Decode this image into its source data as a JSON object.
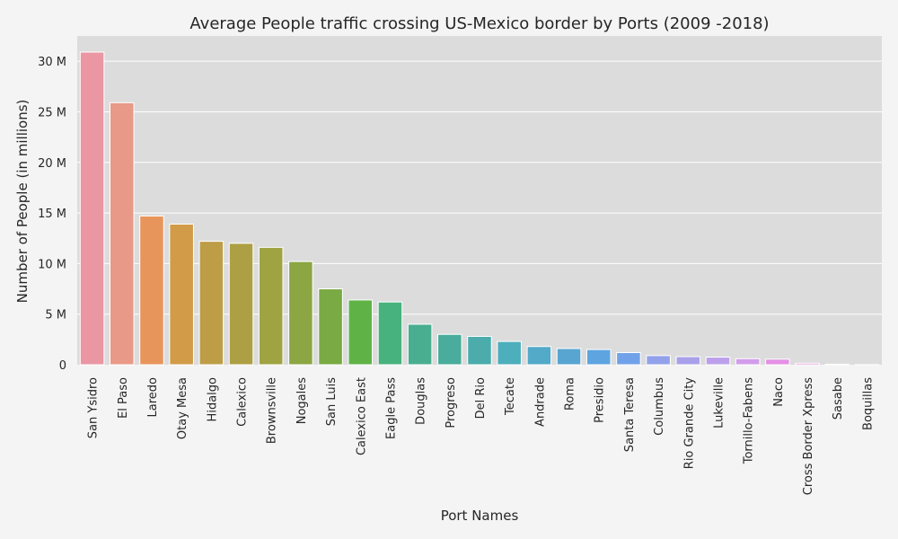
{
  "chart_data": {
    "type": "bar",
    "title": "Average People traffic crossing US-Mexico border by Ports (2009 -2018)",
    "xlabel": "Port Names",
    "ylabel": "Number of People (in millions)",
    "ylim": [
      0,
      32.5
    ],
    "yticks": [
      0,
      5,
      10,
      15,
      20,
      25,
      30
    ],
    "ytick_labels": [
      "0",
      "5 M",
      "10 M",
      "15 M",
      "20 M",
      "25 M",
      "30 M"
    ],
    "grid": true,
    "categories": [
      "San Ysidro",
      "El Paso",
      "Laredo",
      "Otay Mesa",
      "Hidalgo",
      "Calexico",
      "Brownsville",
      "Nogales",
      "San Luis",
      "Calexico East",
      "Eagle Pass",
      "Douglas",
      "Progreso",
      "Del Rio",
      "Tecate",
      "Andrade",
      "Roma",
      "Presidio",
      "Santa Teresa",
      "Columbus",
      "Rio Grande City",
      "Lukeville",
      "Tornillo-Fabens",
      "Naco",
      "Cross Border Xpress",
      "Sasabe",
      "Boquillas"
    ],
    "values": [
      30.9,
      25.9,
      14.7,
      13.9,
      12.2,
      12.0,
      11.6,
      10.2,
      7.5,
      6.4,
      6.2,
      4.0,
      3.0,
      2.8,
      2.3,
      1.8,
      1.6,
      1.5,
      1.2,
      0.9,
      0.8,
      0.75,
      0.6,
      0.55,
      0.15,
      0.05,
      0.01
    ],
    "colors": [
      "#ea96a3",
      "#e99987",
      "#e8955c",
      "#d19b48",
      "#bd9d46",
      "#ad9f43",
      "#9fa342",
      "#8ca643",
      "#79aa43",
      "#5fb346",
      "#47b27d",
      "#48ae8f",
      "#4aac9c",
      "#4bacab",
      "#4daebc",
      "#52aac8",
      "#58a5d1",
      "#5ea4e0",
      "#71a2e9",
      "#92a1ea",
      "#a9a0ea",
      "#bda0eb",
      "#d29ceb",
      "#e48fe5",
      "#e887d1",
      "#ea93c2",
      "#eb96b2"
    ]
  }
}
